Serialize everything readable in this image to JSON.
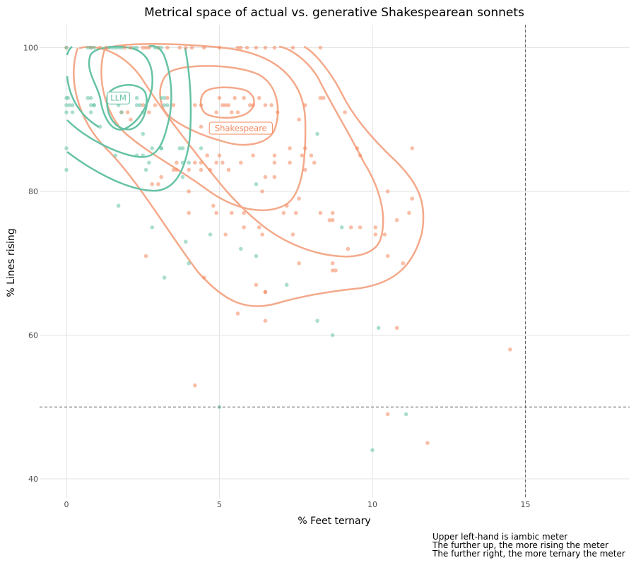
{
  "chart_data": {
    "type": "scatter",
    "title": "Metrical space of actual vs. generative Shakespearean sonnets",
    "xlabel": "% Feet ternary",
    "ylabel": "% Lines rising",
    "xlim": [
      -0.9,
      18.5
    ],
    "ylim": [
      37.5,
      103
    ],
    "x_ticks": [
      0,
      5,
      10,
      15
    ],
    "y_ticks": [
      40,
      60,
      80,
      100
    ],
    "grid": true,
    "reference_lines": {
      "vertical_x": 15,
      "horizontal_y": 50
    },
    "captions": [
      "Upper left-hand is iambic meter",
      "The further up, the more rising the meter",
      "The further right, the more ternary the meter"
    ],
    "colors": {
      "Shakespeare": "#f4895f",
      "LLM": "#66c2a5"
    },
    "series": [
      {
        "name": "Shakespeare",
        "label_at": [
          5.7,
          88.8
        ],
        "points": [
          [
            0,
            100
          ],
          [
            0.8,
            100
          ],
          [
            1.1,
            100
          ],
          [
            1.3,
            100
          ],
          [
            1.9,
            100
          ],
          [
            2.1,
            100
          ],
          [
            2.5,
            100
          ],
          [
            2.6,
            100
          ],
          [
            2.7,
            100
          ],
          [
            3.0,
            100
          ],
          [
            3.3,
            100
          ],
          [
            3.7,
            100
          ],
          [
            3.9,
            100
          ],
          [
            4.1,
            100
          ],
          [
            4.5,
            100
          ],
          [
            5.0,
            100
          ],
          [
            5.6,
            100
          ],
          [
            5.7,
            100
          ],
          [
            5.9,
            100
          ],
          [
            6.2,
            100
          ],
          [
            6.5,
            100
          ],
          [
            6.8,
            100
          ],
          [
            7.4,
            100
          ],
          [
            8.3,
            100
          ],
          [
            1.8,
            91
          ],
          [
            2.0,
            91
          ],
          [
            2.1,
            90
          ],
          [
            2.5,
            92
          ],
          [
            2.7,
            91
          ],
          [
            2.9,
            92
          ],
          [
            3.3,
            93
          ],
          [
            3.5,
            92
          ],
          [
            4.2,
            92
          ],
          [
            4.4,
            92
          ],
          [
            5.0,
            93
          ],
          [
            5.1,
            92
          ],
          [
            5.2,
            92
          ],
          [
            5.3,
            92
          ],
          [
            5.5,
            93
          ],
          [
            5.6,
            91
          ],
          [
            5.8,
            93
          ],
          [
            6.0,
            92
          ],
          [
            6.1,
            92
          ],
          [
            6.3,
            93
          ],
          [
            6.5,
            92
          ],
          [
            6.7,
            92
          ],
          [
            6.9,
            91
          ],
          [
            7.8,
            92
          ],
          [
            8.3,
            93
          ],
          [
            8.4,
            93
          ],
          [
            9.1,
            91
          ],
          [
            4.4,
            89
          ],
          [
            4.9,
            91
          ],
          [
            5.4,
            91
          ],
          [
            7.6,
            90
          ],
          [
            7.7,
            85
          ],
          [
            8.1,
            84
          ],
          [
            8.0,
            85
          ],
          [
            7.8,
            86
          ],
          [
            7.8,
            83
          ],
          [
            7.3,
            86
          ],
          [
            7.3,
            84
          ],
          [
            6.8,
            85
          ],
          [
            6.8,
            84
          ],
          [
            6.5,
            82
          ],
          [
            6.4,
            80
          ],
          [
            6.8,
            82
          ],
          [
            6.1,
            85
          ],
          [
            5.7,
            84
          ],
          [
            5.0,
            85
          ],
          [
            5.3,
            83
          ],
          [
            4.9,
            84
          ],
          [
            4.4,
            84
          ],
          [
            4.4,
            83
          ],
          [
            4.2,
            84
          ],
          [
            4.0,
            83
          ],
          [
            4.6,
            85
          ],
          [
            3.6,
            83
          ],
          [
            3.5,
            83
          ],
          [
            3.1,
            82
          ],
          [
            2.8,
            81
          ],
          [
            3.0,
            81
          ],
          [
            4.0,
            80
          ],
          [
            4.0,
            77
          ],
          [
            4.8,
            78
          ],
          [
            4.9,
            77
          ],
          [
            5.4,
            77
          ],
          [
            5.8,
            77
          ],
          [
            6.3,
            75
          ],
          [
            6.4,
            74
          ],
          [
            5.2,
            74
          ],
          [
            5.8,
            75
          ],
          [
            7.1,
            77
          ],
          [
            7.2,
            78
          ],
          [
            7.5,
            77
          ],
          [
            7.4,
            74
          ],
          [
            7.6,
            79
          ],
          [
            8.3,
            77
          ],
          [
            8.7,
            77
          ],
          [
            8.6,
            76
          ],
          [
            8.7,
            76
          ],
          [
            9.3,
            75
          ],
          [
            9.6,
            75
          ],
          [
            10.1,
            75
          ],
          [
            10.4,
            74
          ],
          [
            10.1,
            74
          ],
          [
            10.5,
            80
          ],
          [
            10.8,
            76
          ],
          [
            11.2,
            77
          ],
          [
            11.3,
            79
          ],
          [
            10.5,
            71
          ],
          [
            11.0,
            70
          ],
          [
            9.2,
            72
          ],
          [
            8.7,
            70
          ],
          [
            8.7,
            69
          ],
          [
            8.8,
            69
          ],
          [
            7.6,
            70
          ],
          [
            9.5,
            86
          ],
          [
            9.6,
            85
          ],
          [
            11.3,
            86
          ],
          [
            2.6,
            71
          ],
          [
            4.5,
            68
          ],
          [
            6.2,
            67
          ],
          [
            6.5,
            66
          ],
          [
            6.5,
            66
          ],
          [
            5.6,
            63
          ],
          [
            6.5,
            62
          ],
          [
            10.8,
            61
          ],
          [
            14.5,
            58
          ],
          [
            4.2,
            53
          ],
          [
            10.5,
            49
          ],
          [
            11.8,
            45
          ],
          [
            3.6,
            84
          ],
          [
            4.7,
            83
          ],
          [
            5.1,
            84
          ]
        ]
      },
      {
        "name": "LLM",
        "label_at": [
          1.7,
          93.0
        ],
        "points": [
          [
            0,
            100
          ],
          [
            0.7,
            100
          ],
          [
            0.8,
            100
          ],
          [
            0.9,
            100
          ],
          [
            1.4,
            100
          ],
          [
            1.5,
            100
          ],
          [
            1.6,
            100
          ],
          [
            1.7,
            100
          ],
          [
            1.8,
            100
          ],
          [
            2.2,
            100
          ],
          [
            2.3,
            100
          ],
          [
            2.9,
            100
          ],
          [
            3.0,
            100
          ],
          [
            3.1,
            100
          ],
          [
            0,
            93
          ],
          [
            0.05,
            93
          ],
          [
            0.1,
            92
          ],
          [
            0.2,
            92
          ],
          [
            0,
            92
          ],
          [
            0,
            91
          ],
          [
            0.2,
            91
          ],
          [
            0.7,
            93
          ],
          [
            0.8,
            92
          ],
          [
            0.8,
            93
          ],
          [
            0.9,
            92
          ],
          [
            0.9,
            92
          ],
          [
            1.5,
            93
          ],
          [
            1.6,
            93
          ],
          [
            1.7,
            92
          ],
          [
            1.8,
            91
          ],
          [
            2.3,
            93
          ],
          [
            2.3,
            92
          ],
          [
            2.4,
            92
          ],
          [
            2.6,
            92
          ],
          [
            2.5,
            91
          ],
          [
            3.1,
            93
          ],
          [
            3.2,
            92
          ],
          [
            3.3,
            92
          ],
          [
            3.2,
            93
          ],
          [
            1.1,
            89
          ],
          [
            2.5,
            88
          ],
          [
            2.8,
            86
          ],
          [
            3.1,
            86
          ],
          [
            3.1,
            86
          ],
          [
            3.7,
            86
          ],
          [
            3.8,
            86
          ],
          [
            4.4,
            86
          ],
          [
            1.6,
            85
          ],
          [
            2.3,
            85
          ],
          [
            2.5,
            85
          ],
          [
            2.7,
            84
          ],
          [
            3.8,
            84
          ],
          [
            4.0,
            84
          ],
          [
            2.6,
            83
          ],
          [
            3.8,
            82
          ],
          [
            6.2,
            81
          ],
          [
            1.7,
            78
          ],
          [
            2.8,
            75
          ],
          [
            3.9,
            73
          ],
          [
            4.7,
            74
          ],
          [
            4.0,
            70
          ],
          [
            5.7,
            72
          ],
          [
            6.2,
            71
          ],
          [
            9.0,
            75
          ],
          [
            3.2,
            68
          ],
          [
            7.2,
            67
          ],
          [
            0,
            86
          ],
          [
            0,
            83
          ],
          [
            0.8,
            91
          ],
          [
            8.2,
            88
          ],
          [
            8.2,
            62
          ],
          [
            8.7,
            60
          ],
          [
            10.2,
            61
          ],
          [
            11.1,
            49
          ],
          [
            5.0,
            50
          ],
          [
            10.0,
            44
          ]
        ]
      }
    ]
  }
}
